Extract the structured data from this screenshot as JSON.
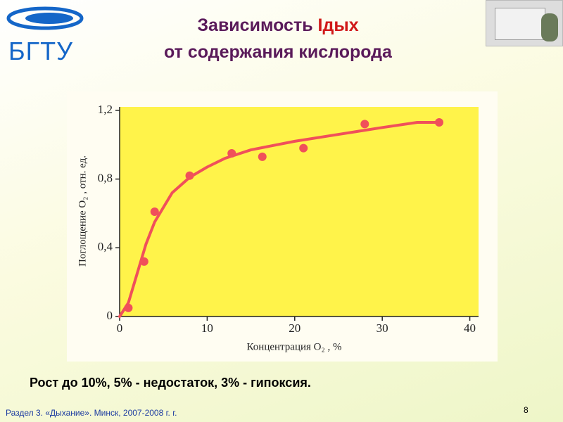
{
  "slide": {
    "logo": "БГТУ",
    "title_start": "Зависимость",
    "title_highlight": "Iдых",
    "title_line2": "от содержания кислорода",
    "caption": "Рост до 10%, 5% - недостаток, 3% - гипоксия.",
    "footer": "Раздел 3. «Дыхание». Минск, 2007-2008 г. г.",
    "page": "8"
  },
  "chart_data": {
    "type": "scatter",
    "xlabel": "Концентрация O₂ , %",
    "ylabel": "Поглощение O₂ , отн. ед.",
    "xlim": [
      0,
      41
    ],
    "ylim": [
      0,
      1.22
    ],
    "xticks": [
      0,
      10,
      20,
      30,
      40
    ],
    "yticks": [
      0,
      {
        "value": 0.4,
        "label": "0,4"
      },
      {
        "value": 0.8,
        "label": "0,8"
      },
      {
        "value": 1.2,
        "label": "1,2"
      }
    ],
    "series": [
      {
        "mode": "line",
        "color": "#f0505a",
        "x": [
          0,
          1,
          2,
          3,
          4,
          6,
          8,
          10,
          12,
          15,
          20,
          25,
          30,
          34,
          36.5
        ],
        "values": [
          0,
          0.08,
          0.25,
          0.42,
          0.55,
          0.72,
          0.81,
          0.87,
          0.92,
          0.97,
          1.02,
          1.06,
          1.1,
          1.13,
          1.13
        ]
      },
      {
        "mode": "markers",
        "color": "#f0505a",
        "x": [
          1,
          2.8,
          4,
          8,
          12.8,
          16.3,
          21,
          28,
          36.5
        ],
        "values": [
          0.05,
          0.32,
          0.61,
          0.82,
          0.95,
          0.93,
          0.98,
          1.12,
          1.13
        ]
      }
    ]
  }
}
